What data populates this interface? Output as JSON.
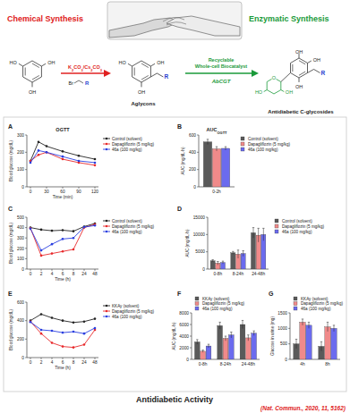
{
  "scheme": {
    "chemical_title": "Chemical Synthesis",
    "enzymatic_title": "Enzymatic Synthesis",
    "reagent": "K2CO3/Cs2CO3",
    "halide": "Br",
    "r_group": "R",
    "biocatalyst": [
      "Recyclable",
      "Whole-cell Biocatalyst"
    ],
    "enzyme": "AbCGT",
    "aglycon_label": "Aglycons",
    "product_label": "Antidiabetic C-glycosides",
    "hydroxyl": "OH",
    "hydroxyl_left": "HO",
    "ring_oxygen": "O"
  },
  "chart_data": [
    {
      "type": "line",
      "panel": "A",
      "title": "OGTT",
      "x_label": "Time (min)",
      "y_label": "Blood glucose (mg/dL)",
      "x": [
        0,
        15,
        30,
        60,
        90,
        120
      ],
      "xlim": [
        0,
        120
      ],
      "xticks": [
        0,
        30,
        60,
        90,
        120
      ],
      "ylim": [
        0,
        300
      ],
      "yticks": [
        0,
        100,
        200,
        300
      ],
      "marker": "circle",
      "legend": "right",
      "series": [
        {
          "name": "Control (solvent)",
          "color": "#222222",
          "values": [
            150,
            260,
            235,
            205,
            180,
            160
          ]
        },
        {
          "name": "Dapagliflozin (5 mg/kg)",
          "color": "#e8292b",
          "values": [
            150,
            185,
            200,
            160,
            140,
            125
          ]
        },
        {
          "name": "46a (100 mg/kg)",
          "color": "#2b3fe0",
          "values": [
            140,
            210,
            200,
            175,
            150,
            140
          ]
        }
      ]
    },
    {
      "type": "bar",
      "panel": "B",
      "title": "AUC",
      "title_sub": "OGTT",
      "y_label": "AUC (mg/dL·h)",
      "categories": [
        "0-2h"
      ],
      "ylim": [
        0,
        600
      ],
      "yticks": [
        0,
        200,
        400,
        600
      ],
      "legend": "right",
      "series": [
        {
          "name": "Control (solvent)",
          "color": "#5a5a5a",
          "values": [
            520
          ],
          "errors": [
            30
          ]
        },
        {
          "name": "Dapagliflozin (5 mg/kg)",
          "color": "#f08a8a",
          "values": [
            440
          ],
          "errors": [
            25
          ]
        },
        {
          "name": "46a (100 mg/kg)",
          "color": "#6b6bee",
          "values": [
            445
          ],
          "errors": [
            20
          ]
        }
      ]
    },
    {
      "type": "line",
      "panel": "C",
      "x_label": "Time (h)",
      "y_label": "Blood glucose (mg/dL)",
      "categories": [
        "0",
        "2",
        "4",
        "6",
        "8",
        "24",
        "48"
      ],
      "ylim": [
        0,
        500
      ],
      "yticks": [
        0,
        100,
        200,
        300,
        400,
        500
      ],
      "marker": "circle",
      "legend": "right",
      "series": [
        {
          "name": "Control (solvent)",
          "color": "#222222",
          "values": [
            400,
            380,
            370,
            375,
            365,
            410,
            440
          ]
        },
        {
          "name": "Dapagliflozin (5 mg/kg)",
          "color": "#e8292b",
          "values": [
            395,
            130,
            150,
            170,
            190,
            400,
            430
          ]
        },
        {
          "name": "46a (100 mg/kg)",
          "color": "#2b3fe0",
          "values": [
            390,
            180,
            240,
            290,
            300,
            405,
            420
          ]
        }
      ]
    },
    {
      "type": "bar",
      "panel": "D",
      "y_label": "AUC (mg/dL·h)",
      "categories": [
        "0-8h",
        "8-24h",
        "24-48h"
      ],
      "ylim": [
        0,
        15000
      ],
      "yticks": [
        0,
        5000,
        10000,
        15000
      ],
      "legend": "right",
      "series": [
        {
          "name": "Control (solvent)",
          "color": "#5a5a5a",
          "values": [
            2400,
            4700,
            10500
          ],
          "errors": [
            300,
            400,
            1500
          ]
        },
        {
          "name": "Dapagliflozin (5 mg/kg)",
          "color": "#f08a8a",
          "values": [
            1700,
            4300,
            9800
          ],
          "errors": [
            500,
            1200,
            2000
          ]
        },
        {
          "name": "46a (100 mg/kg)",
          "color": "#6b6bee",
          "values": [
            1900,
            4500,
            10000
          ],
          "errors": [
            400,
            800,
            1800
          ]
        }
      ]
    },
    {
      "type": "line",
      "panel": "E",
      "x_label": "Time (h)",
      "y_label": "Blood glucose (mg/dL)",
      "categories": [
        "0",
        "2",
        "4",
        "6",
        "8",
        "24",
        "48"
      ],
      "ylim": [
        0,
        600
      ],
      "yticks": [
        0,
        200,
        400,
        600
      ],
      "marker": "circle",
      "legend": "right",
      "series": [
        {
          "name": "KKAy (solvent)",
          "color": "#222222",
          "values": [
            400,
            470,
            430,
            400,
            380,
            390,
            420
          ]
        },
        {
          "name": "Dapagliflozin (5 mg/kg)",
          "color": "#e8292b",
          "values": [
            390,
            260,
            160,
            120,
            110,
            140,
            300
          ]
        },
        {
          "name": "46a (100 mg/kg)",
          "color": "#2b3fe0",
          "values": [
            385,
            300,
            290,
            270,
            280,
            260,
            320
          ]
        }
      ]
    },
    {
      "type": "bar",
      "panel": "F",
      "y_label": "AUC (mg/dL·h)",
      "categories": [
        "0-8h",
        "8-24h",
        "24-48h"
      ],
      "ylim": [
        0,
        8000
      ],
      "yticks": [
        0,
        2000,
        4000,
        6000,
        8000
      ],
      "legend": "top",
      "series": [
        {
          "name": "KKAy (solvent)",
          "color": "#5a5a5a",
          "values": [
            3000,
            5800,
            6000
          ],
          "errors": [
            400,
            600,
            700
          ]
        },
        {
          "name": "Dapagliflozin (5 mg/kg)",
          "color": "#f08a8a",
          "values": [
            1400,
            3600,
            3700
          ],
          "errors": [
            200,
            400,
            500
          ]
        },
        {
          "name": "46a (100 mg/kg)",
          "color": "#6b6bee",
          "values": [
            2300,
            4200,
            4500
          ],
          "errors": [
            300,
            500,
            400
          ]
        }
      ]
    },
    {
      "type": "bar",
      "panel": "G",
      "y_label": "Glucose in urine (mg)",
      "categories": [
        "4h",
        "8h"
      ],
      "ylim": [
        0,
        1500
      ],
      "yticks": [
        0,
        500,
        1000,
        1500
      ],
      "legend": "top",
      "series": [
        {
          "name": "KKAy (solvent)",
          "color": "#5a5a5a",
          "values": [
            500,
            420
          ],
          "errors": [
            150,
            150
          ]
        },
        {
          "name": "Dapagliflozin (5 mg/kg)",
          "color": "#f08a8a",
          "values": [
            1200,
            1050
          ],
          "errors": [
            100,
            150
          ]
        },
        {
          "name": "46a (100 mg/kg)",
          "color": "#6b6bee",
          "values": [
            1100,
            1000
          ],
          "errors": [
            100,
            100
          ]
        }
      ]
    }
  ],
  "caption": "Antidiabetic Activity",
  "citation": "(Nat. Commun., 2020, 11, 5162)"
}
